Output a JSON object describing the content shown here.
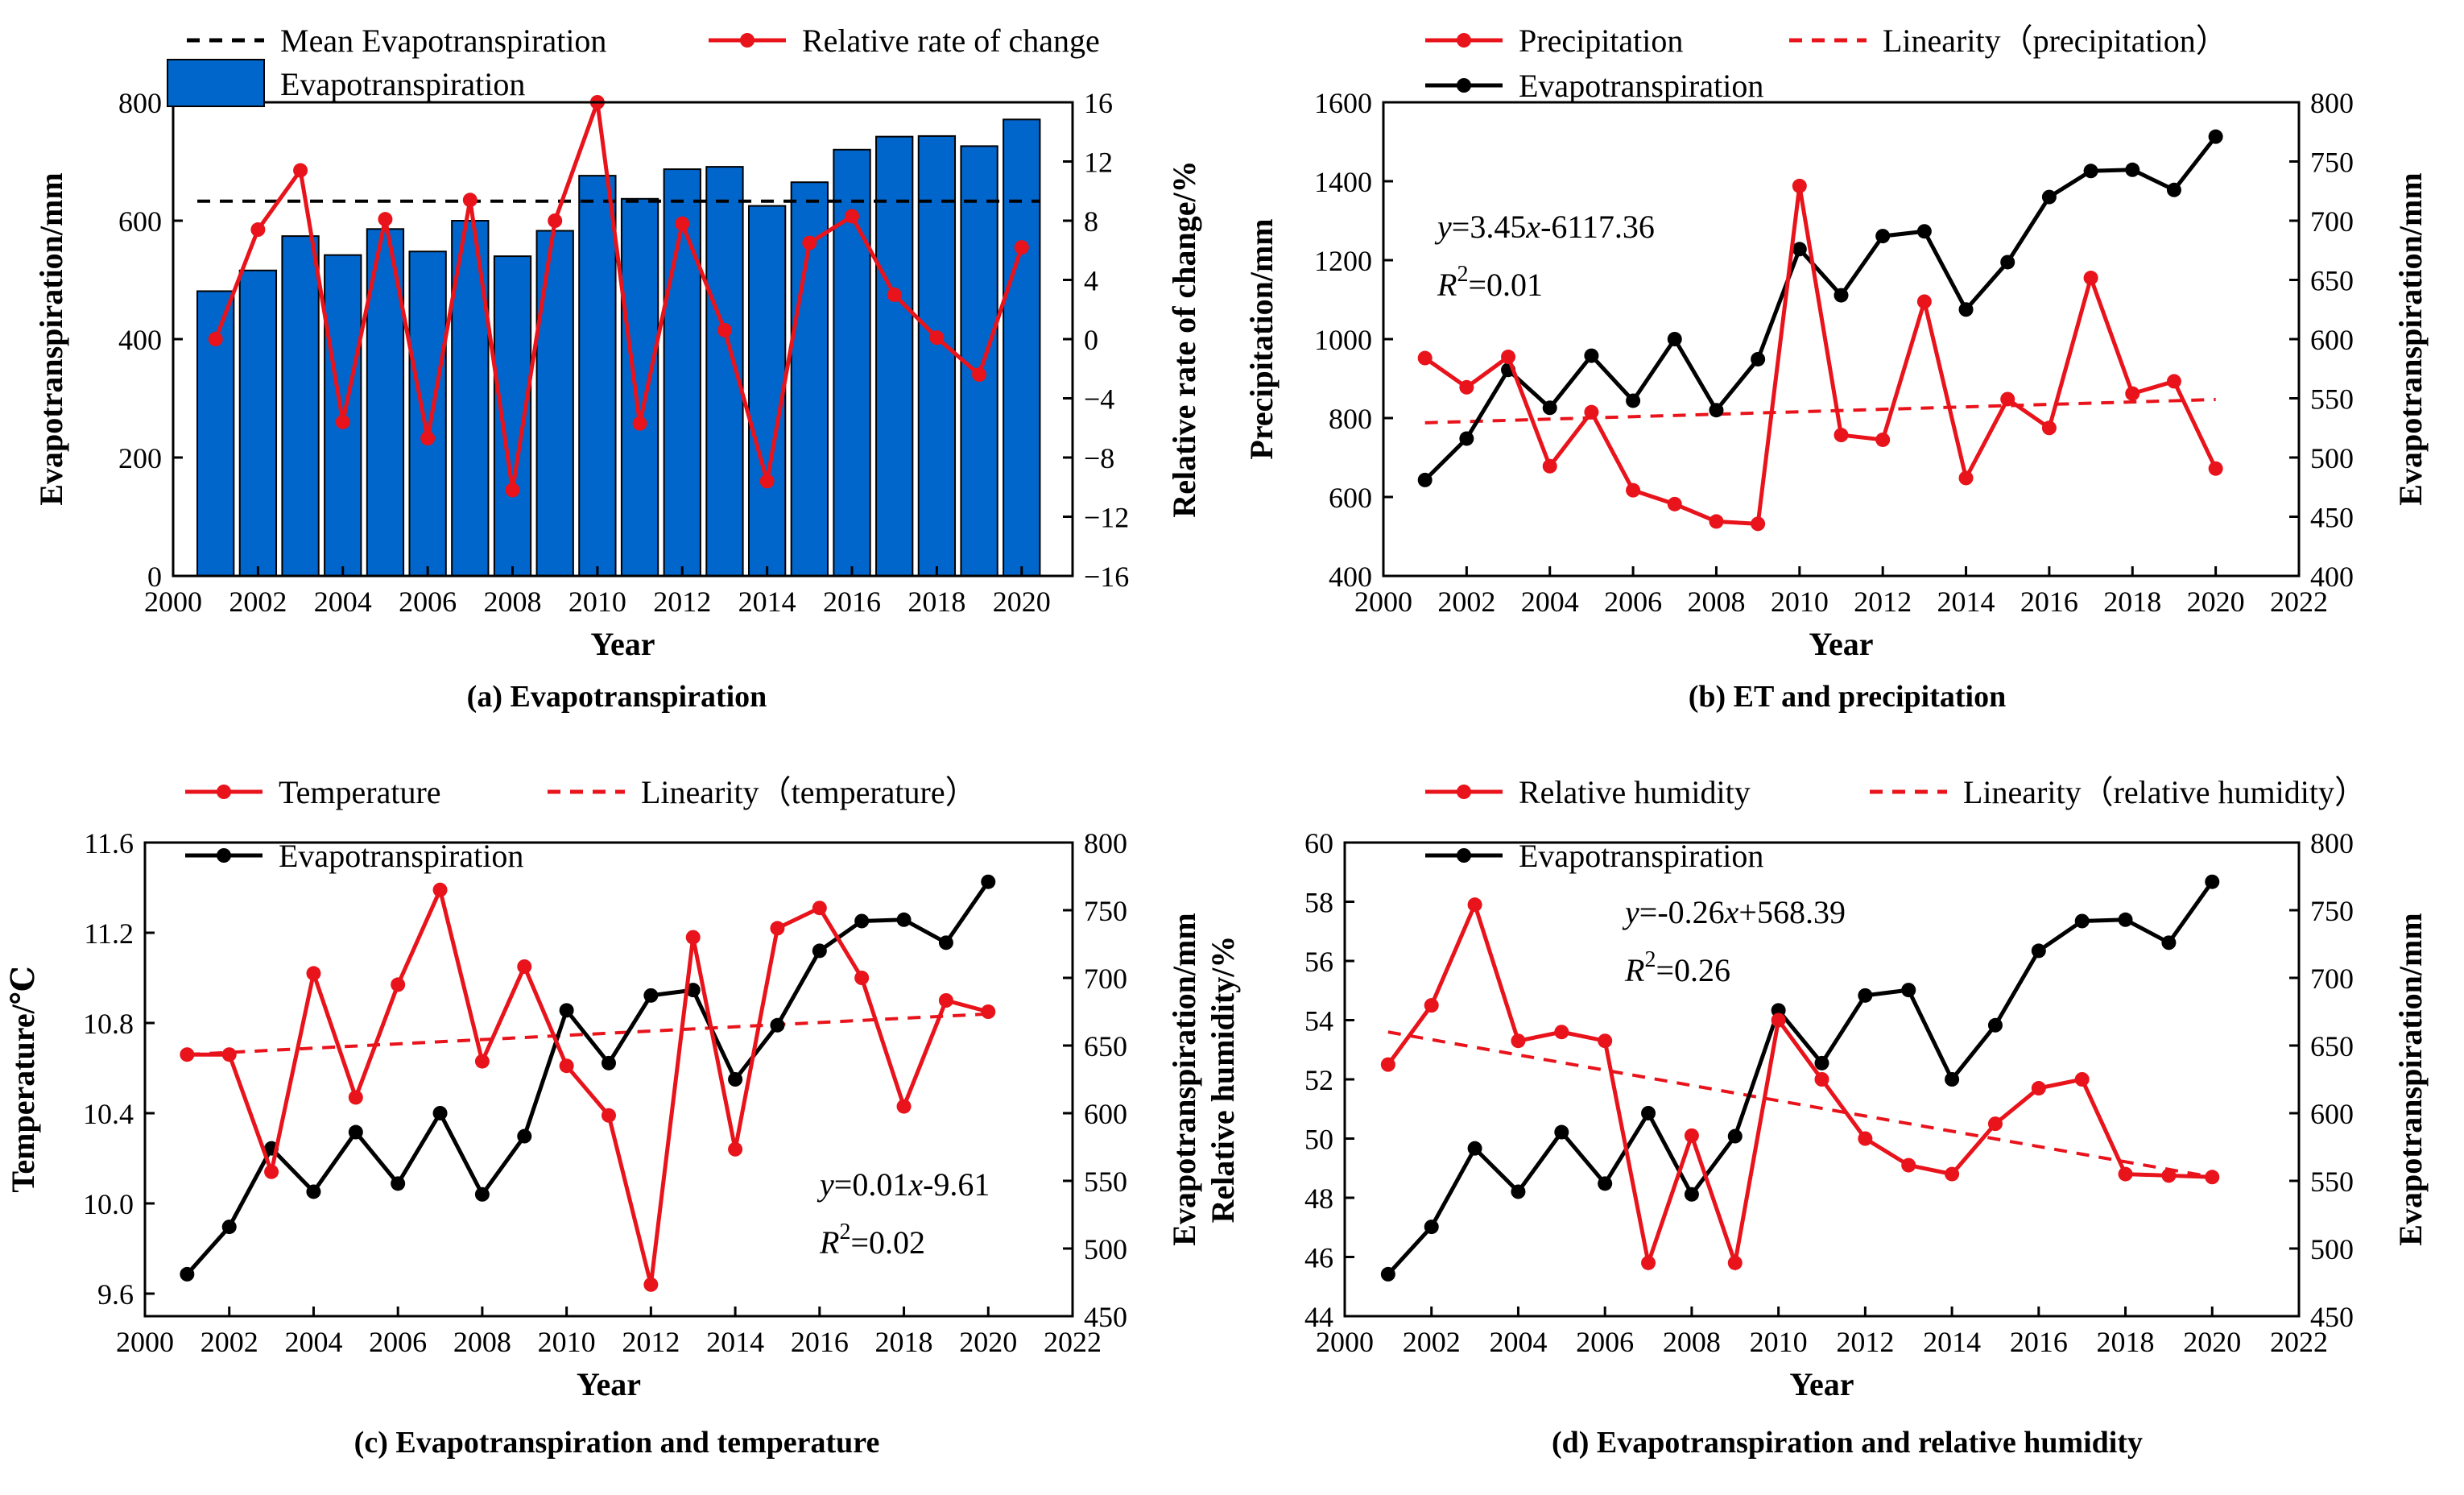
{
  "colors": {
    "bar": "#0066cc",
    "red": "#e8131b",
    "black": "#000000"
  },
  "years": [
    2001,
    2002,
    2003,
    2004,
    2005,
    2006,
    2007,
    2008,
    2009,
    2010,
    2011,
    2012,
    2013,
    2014,
    2015,
    2016,
    2017,
    2018,
    2019,
    2020
  ],
  "et": [
    481,
    516,
    574,
    542,
    586,
    548,
    600,
    540,
    583,
    676,
    637,
    687,
    691,
    625,
    665,
    720,
    742,
    743,
    726,
    771
  ],
  "chart_data": [
    {
      "type": "bar",
      "caption": "(a) Evapotranspiration",
      "xlabel": "Year",
      "ylabel": "Evapotranspiration/mm",
      "y2label": "Relative rate of change/%",
      "xticks": [
        2000,
        2002,
        2004,
        2006,
        2008,
        2010,
        2012,
        2014,
        2016,
        2018,
        2020
      ],
      "yticks": [
        0,
        200,
        400,
        600,
        800
      ],
      "y2ticks": [
        -16,
        -12,
        -8,
        -4,
        0,
        4,
        8,
        12,
        16
      ],
      "y2tick_labels": [
        "−16",
        "−12",
        "−8",
        "−4",
        "0",
        "4",
        "8",
        "12",
        "16"
      ],
      "xlim": [
        2000,
        2021.2
      ],
      "ylim": [
        0,
        800
      ],
      "y2lim": [
        -16,
        16
      ],
      "mean": 633,
      "rate": [
        0,
        7.4,
        11.4,
        -5.6,
        8.1,
        -6.7,
        9.4,
        -10.2,
        8.0,
        16.0,
        -5.7,
        7.8,
        0.6,
        -9.6,
        6.5,
        8.3,
        3.0,
        0.1,
        -2.4,
        6.2
      ],
      "legend": {
        "mean": "Mean Evapotranspiration",
        "rate": "Relative rate of change",
        "et": "Evapotranspiration"
      }
    },
    {
      "type": "line",
      "caption": "(b) ET and precipitation",
      "xlabel": "Year",
      "ylabel": "Precipitation/mm",
      "y2label": "Evapotranspiration/mm",
      "xticks": [
        2000,
        2002,
        2004,
        2006,
        2008,
        2010,
        2012,
        2014,
        2016,
        2018,
        2020,
        2022
      ],
      "yticks": [
        400,
        600,
        800,
        1000,
        1200,
        1400,
        1600
      ],
      "y2ticks": [
        400,
        450,
        500,
        550,
        600,
        650,
        700,
        750,
        800
      ],
      "xlim": [
        2000,
        2022
      ],
      "ylim": [
        400,
        1600
      ],
      "y2lim": [
        400,
        800
      ],
      "series": [
        952,
        878,
        955,
        678,
        815,
        617,
        582,
        538,
        532,
        1388,
        757,
        745,
        1095,
        648,
        848,
        775,
        1155,
        862,
        893,
        672
      ],
      "trend": [
        788,
        847
      ],
      "equation": "=3.45",
      "equation_tail": "-6117.36",
      "r2": "=0.01",
      "legend": {
        "series": "Precipitation",
        "trend": "Linearity（precipitation）",
        "et": "Evapotranspiration"
      }
    },
    {
      "type": "line",
      "caption": "(c) Evapotranspiration and temperature",
      "xlabel": "Year",
      "ylabel": "Temperature/℃",
      "y2label": "Evapotranspiration/mm",
      "xticks": [
        2000,
        2002,
        2004,
        2006,
        2008,
        2010,
        2012,
        2014,
        2016,
        2018,
        2020,
        2022
      ],
      "yticks": [
        9.6,
        10.0,
        10.4,
        10.8,
        11.2,
        11.6
      ],
      "ytick_labels": [
        "9.6",
        "10.0",
        "10.4",
        "10.8",
        "11.2",
        "11.6"
      ],
      "y2ticks": [
        450,
        500,
        550,
        600,
        650,
        700,
        750,
        800
      ],
      "xlim": [
        2000,
        2022
      ],
      "ylim": [
        9.5,
        11.6
      ],
      "y2lim": [
        450,
        800
      ],
      "series": [
        10.66,
        10.66,
        10.14,
        11.02,
        10.47,
        10.97,
        11.39,
        10.63,
        11.05,
        10.61,
        10.39,
        9.64,
        11.18,
        10.24,
        11.22,
        11.31,
        11.0,
        10.43,
        10.9,
        10.85
      ],
      "trend": [
        10.66,
        10.84
      ],
      "equation": "=0.01",
      "equation_tail": "-9.61",
      "r2": "=0.02",
      "legend": {
        "series": "Temperature",
        "trend": "Linearity（temperature）",
        "et": "Evapotranspiration"
      }
    },
    {
      "type": "line",
      "caption": "(d) Evapotranspiration and relative humidity",
      "xlabel": "Year",
      "ylabel": "Relative humidity/%",
      "y2label": "Evapotranspiration/mm",
      "xticks": [
        2000,
        2002,
        2004,
        2006,
        2008,
        2010,
        2012,
        2014,
        2016,
        2018,
        2020,
        2022
      ],
      "yticks": [
        44,
        46,
        48,
        50,
        52,
        54,
        56,
        58,
        60
      ],
      "y2ticks": [
        450,
        500,
        550,
        600,
        650,
        700,
        750,
        800
      ],
      "xlim": [
        2000,
        2022
      ],
      "ylim": [
        44,
        60
      ],
      "y2lim": [
        450,
        800
      ],
      "series": [
        52.5,
        54.5,
        57.9,
        53.3,
        53.6,
        53.3,
        45.8,
        50.1,
        45.8,
        54.0,
        52.0,
        50.0,
        49.1,
        48.8,
        50.5,
        51.7,
        52.0,
        48.8,
        48.75,
        48.7
      ],
      "trend": [
        53.6,
        48.7
      ],
      "equation": "=-0.26",
      "equation_tail": "+568.39",
      "r2": "=0.26",
      "legend": {
        "series": "Relative humidity",
        "trend": "Linearity（relative humidity）",
        "et": "Evapotranspiration"
      }
    }
  ]
}
